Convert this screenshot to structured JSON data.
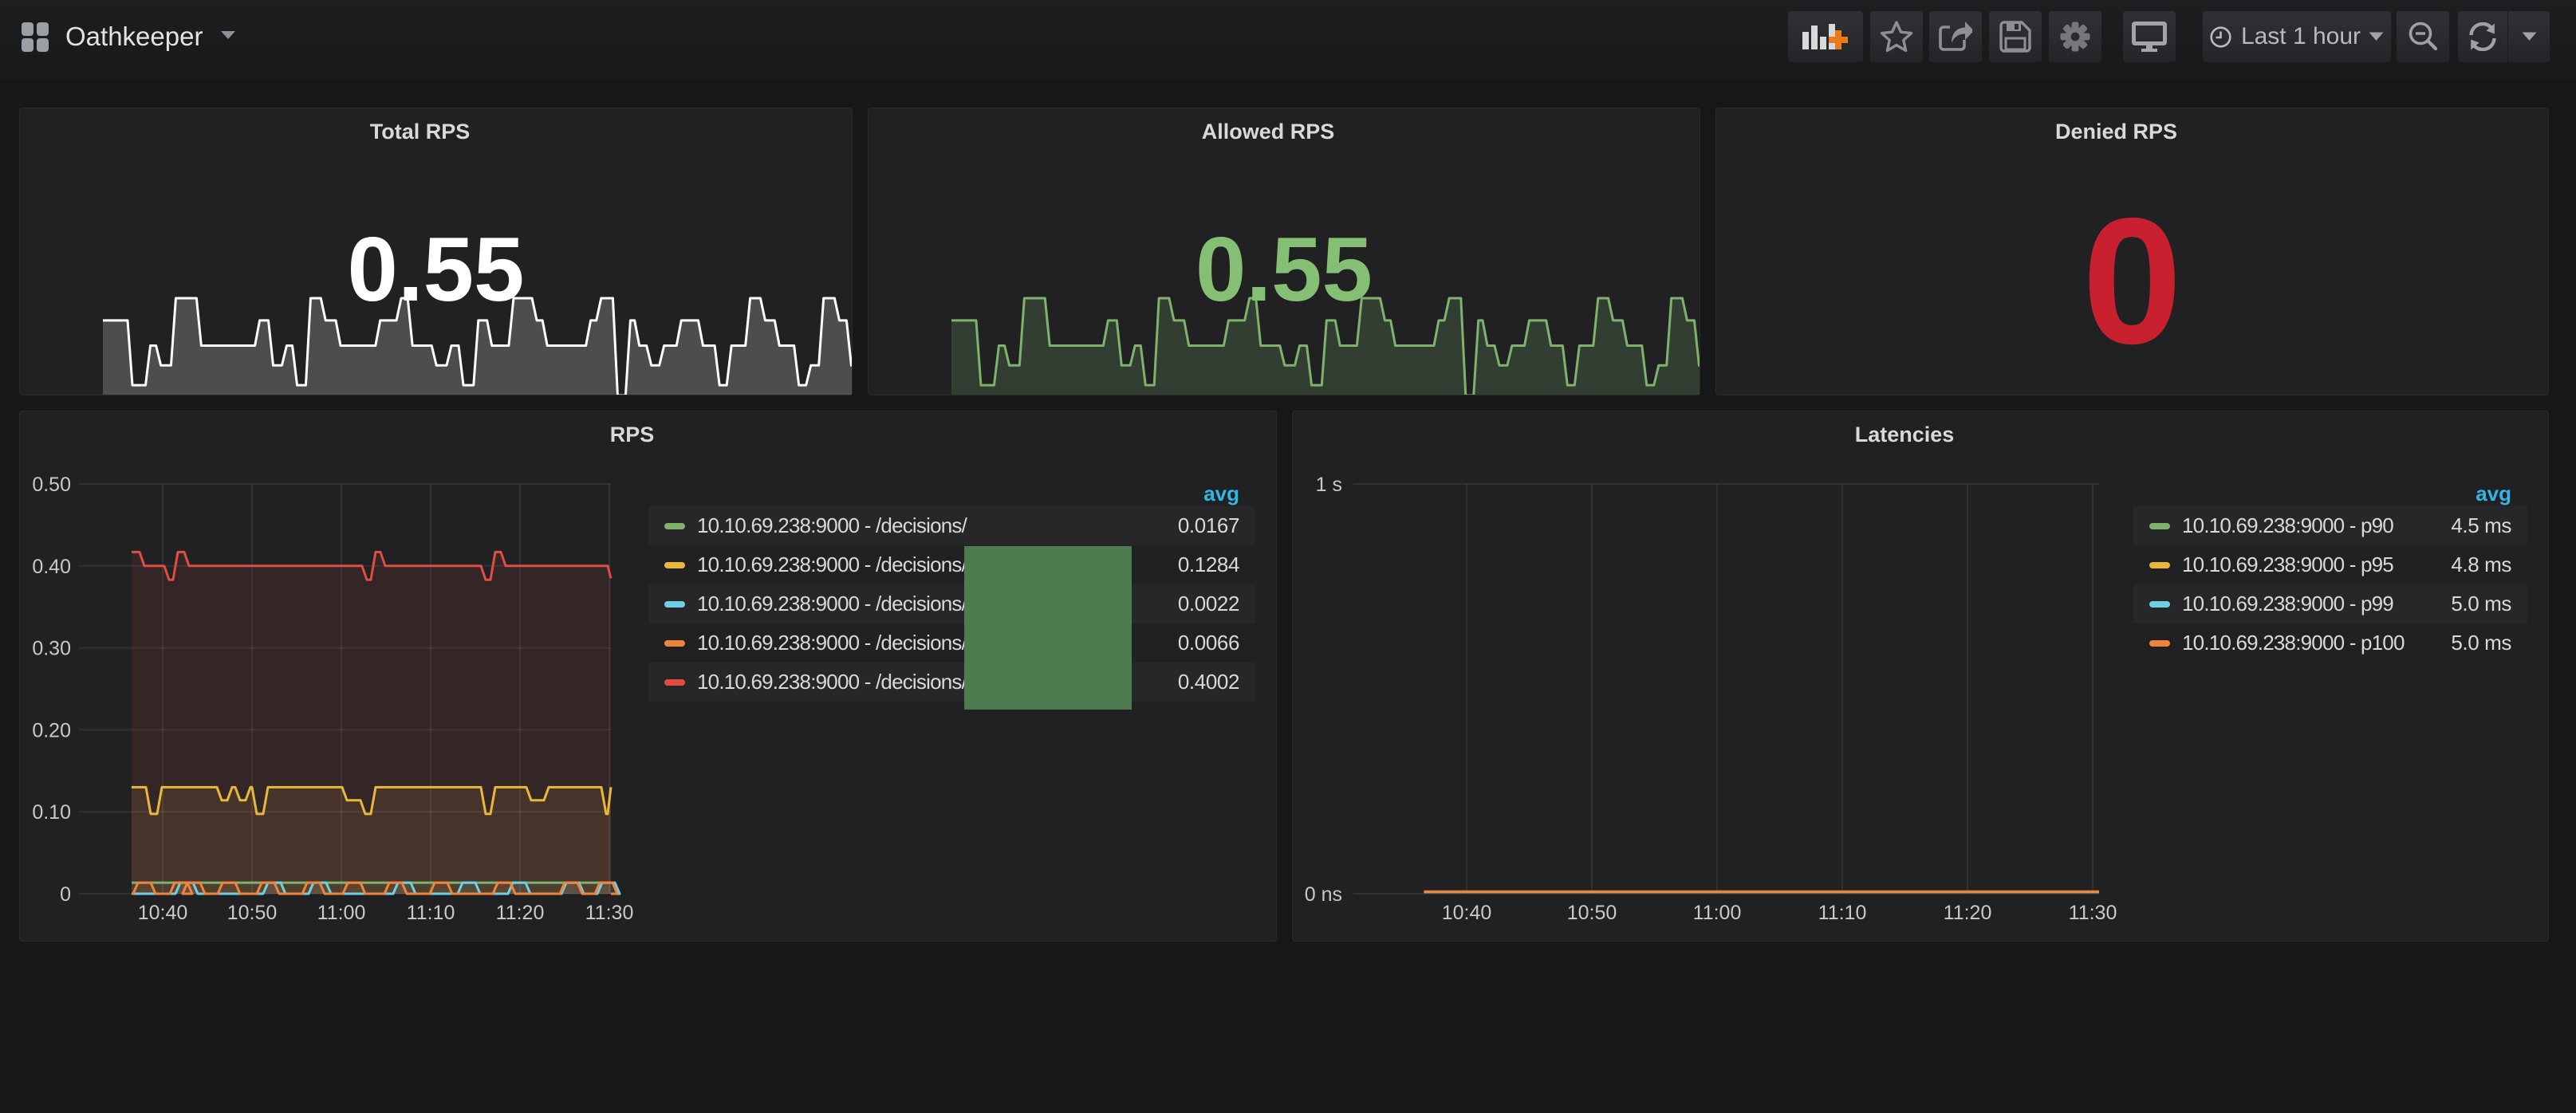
{
  "navbar": {
    "dashboard_title": "Oathkeeper",
    "buttons": {
      "add_panel": "add-panel",
      "star": "star",
      "share": "share",
      "save": "save",
      "settings": "settings",
      "cycle_view": "cycle-view",
      "time_range_label": "Last 1 hour",
      "zoom_out": "zoom-out",
      "refresh": "refresh"
    }
  },
  "redaction": {
    "color": "#4e7b50"
  },
  "colors": {
    "page_bg": "#161719",
    "panel_bg": "#212124",
    "title_text": "#d8d9da",
    "legend_header_blue": "#33b5e5",
    "axis_text": "#c8c9ca",
    "series_green": "#7eb26d",
    "series_yellow": "#eab839",
    "series_blue": "#6ed0e0",
    "series_orange": "#ef843c",
    "series_red": "#e24d42",
    "stat_red": "#c8202f",
    "stat_green": "#85bf73"
  },
  "chart_data": [
    {
      "id": "total_rps",
      "type": "area-singlestat",
      "title": "Total RPS",
      "big_value": "0.55",
      "value_color": "#ffffff",
      "line_color": "#ffffff",
      "fill_color": "rgba(255,255,255,0.20)",
      "note": "sparkline of total requests/s over last hour; y relative 0..1",
      "points": [
        [
          0.0,
          0.772
        ],
        [
          0.033,
          0.106
        ],
        [
          0.057,
          0.512
        ],
        [
          0.071,
          0.309
        ],
        [
          0.091,
          1.0
        ],
        [
          0.125,
          0.512
        ],
        [
          0.203,
          0.772
        ],
        [
          0.221,
          0.309
        ],
        [
          0.239,
          0.512
        ],
        [
          0.253,
          0.106
        ],
        [
          0.271,
          1.0
        ],
        [
          0.291,
          0.772
        ],
        [
          0.311,
          0.512
        ],
        [
          0.364,
          0.772
        ],
        [
          0.392,
          1.0
        ],
        [
          0.407,
          0.512
        ],
        [
          0.439,
          0.309
        ],
        [
          0.459,
          0.512
        ],
        [
          0.475,
          0.106
        ],
        [
          0.495,
          0.772
        ],
        [
          0.513,
          0.512
        ],
        [
          0.542,
          1.0
        ],
        [
          0.573,
          0.772
        ],
        [
          0.587,
          0.512
        ],
        [
          0.645,
          0.772
        ],
        [
          0.659,
          1.0
        ],
        [
          0.681,
          0.0
        ],
        [
          0.698,
          0.772
        ],
        [
          0.71,
          0.512
        ],
        [
          0.726,
          0.309
        ],
        [
          0.743,
          0.512
        ],
        [
          0.766,
          0.772
        ],
        [
          0.795,
          0.512
        ],
        [
          0.817,
          0.106
        ],
        [
          0.833,
          0.512
        ],
        [
          0.858,
          1.0
        ],
        [
          0.878,
          0.772
        ],
        [
          0.897,
          0.512
        ],
        [
          0.923,
          0.106
        ],
        [
          0.939,
          0.309
        ],
        [
          0.956,
          1.0
        ],
        [
          0.977,
          0.772
        ],
        [
          0.993,
          0.309
        ]
      ]
    },
    {
      "id": "allowed_rps",
      "type": "area-singlestat",
      "title": "Allowed RPS",
      "big_value": "0.55",
      "value_color": "#85bf73",
      "line_color": "#7eb26d",
      "fill_color": "rgba(126,178,109,0.20)",
      "note": "same shape as total_rps sparkline",
      "points": [
        [
          0.0,
          0.772
        ],
        [
          0.033,
          0.106
        ],
        [
          0.057,
          0.512
        ],
        [
          0.071,
          0.309
        ],
        [
          0.091,
          1.0
        ],
        [
          0.125,
          0.512
        ],
        [
          0.203,
          0.772
        ],
        [
          0.221,
          0.309
        ],
        [
          0.239,
          0.512
        ],
        [
          0.253,
          0.106
        ],
        [
          0.271,
          1.0
        ],
        [
          0.291,
          0.772
        ],
        [
          0.311,
          0.512
        ],
        [
          0.364,
          0.772
        ],
        [
          0.392,
          1.0
        ],
        [
          0.407,
          0.512
        ],
        [
          0.439,
          0.309
        ],
        [
          0.459,
          0.512
        ],
        [
          0.475,
          0.106
        ],
        [
          0.495,
          0.772
        ],
        [
          0.513,
          0.512
        ],
        [
          0.542,
          1.0
        ],
        [
          0.573,
          0.772
        ],
        [
          0.587,
          0.512
        ],
        [
          0.645,
          0.772
        ],
        [
          0.659,
          1.0
        ],
        [
          0.681,
          0.0
        ],
        [
          0.698,
          0.772
        ],
        [
          0.71,
          0.512
        ],
        [
          0.726,
          0.309
        ],
        [
          0.743,
          0.512
        ],
        [
          0.766,
          0.772
        ],
        [
          0.795,
          0.512
        ],
        [
          0.817,
          0.106
        ],
        [
          0.833,
          0.512
        ],
        [
          0.858,
          1.0
        ],
        [
          0.878,
          0.772
        ],
        [
          0.897,
          0.512
        ],
        [
          0.923,
          0.106
        ],
        [
          0.939,
          0.309
        ],
        [
          0.956,
          1.0
        ],
        [
          0.977,
          0.772
        ],
        [
          0.993,
          0.309
        ]
      ]
    },
    {
      "id": "denied_rps",
      "type": "singlestat",
      "title": "Denied RPS",
      "big_value": "0",
      "value_color": "#c8202f"
    },
    {
      "id": "rps",
      "type": "line",
      "title": "RPS",
      "ylabel": "",
      "ylim": [
        0,
        0.5
      ],
      "y_ticks": [
        {
          "label": "0.50",
          "v": 0.5
        },
        {
          "label": "0.40",
          "v": 0.4
        },
        {
          "label": "0.30",
          "v": 0.3
        },
        {
          "label": "0.20",
          "v": 0.2
        },
        {
          "label": "0.10",
          "v": 0.1
        },
        {
          "label": "0",
          "v": 0.0
        }
      ],
      "x_ticks": [
        "10:40",
        "10:50",
        "11:00",
        "11:10",
        "11:20",
        "11:30"
      ],
      "legend_header": "avg",
      "series": [
        {
          "name": "10.10.69.238:9000 - /decisions/",
          "color": "#7eb26d",
          "avg": "0.0167",
          "points": [
            [
              0.0989,
              0.0135
            ]
          ]
        },
        {
          "name": "10.10.69.238:9000 - /decisions/",
          "color": "#eab839",
          "avg": "0.1284",
          "points": [
            [
              0.0989,
              0.13
            ],
            [
              0.1259,
              0.0974
            ],
            [
              0.1469,
              0.13
            ],
            [
              0.2594,
              0.114
            ],
            [
              0.2789,
              0.13
            ],
            [
              0.2938,
              0.114
            ],
            [
              0.3133,
              0.13
            ],
            [
              0.3253,
              0.0974
            ],
            [
              0.3463,
              0.13
            ],
            [
              0.4948,
              0.114
            ],
            [
              0.5292,
              0.0974
            ],
            [
              0.5487,
              0.13
            ],
            [
              0.7556,
              0.0974
            ],
            [
              0.7736,
              0.13
            ],
            [
              0.8411,
              0.114
            ],
            [
              0.8741,
              0.13
            ],
            [
              0.982,
              0.0974
            ],
            [
              0.994,
              0.13
            ]
          ]
        },
        {
          "name": "10.10.69.238:9000 - /decisions/",
          "color": "#6ed0e0",
          "avg": "0.0022",
          "points": [
            [
              0.0989,
              0.0
            ]
          ],
          "pulses": [
            0.2024,
            0.3673,
            0.4528,
            0.6117,
            0.7331,
            0.8276,
            0.9281,
            0.9955
          ],
          "pulse_height": 0.0135
        },
        {
          "name": "10.10.69.238:9000 - /decisions/",
          "color": "#ef843c",
          "avg": "0.0066",
          "points": [
            [
              0.0989,
              0.0
            ]
          ],
          "pulses": [
            0.1229,
            0.1919,
            0.2159,
            0.2819,
            0.3553,
            0.4408,
            0.5172,
            0.5952,
            0.6806,
            0.7991,
            0.9251,
            0.991
          ],
          "pulse_height": 0.0135
        },
        {
          "name": "10.10.69.238:9000 - /decisions/",
          "color": "#e24d42",
          "avg": "0.4002",
          "points": [
            [
              0.0989,
              0.417
            ],
            [
              0.1139,
              0.4
            ],
            [
              0.1604,
              0.383
            ],
            [
              0.1769,
              0.417
            ],
            [
              0.1979,
              0.4
            ],
            [
              0.5322,
              0.383
            ],
            [
              0.5487,
              0.417
            ],
            [
              0.5667,
              0.4
            ],
            [
              0.7556,
              0.383
            ],
            [
              0.7736,
              0.417
            ],
            [
              0.7931,
              0.4
            ],
            [
              0.994,
              0.385
            ]
          ]
        }
      ]
    },
    {
      "id": "latencies",
      "type": "line",
      "title": "Latencies",
      "ylim_label": [
        "0 ns",
        "1 s"
      ],
      "y_ticks": [
        {
          "label": "1 s",
          "v": 1.0
        },
        {
          "label": "0 ns",
          "v": 0.0
        }
      ],
      "x_ticks": [
        "10:40",
        "10:50",
        "11:00",
        "11:10",
        "11:20",
        "11:30"
      ],
      "legend_header": "avg",
      "series": [
        {
          "name": "10.10.69.238:9000 - p90",
          "color": "#7eb26d",
          "avg": "4.5 ms",
          "points": [
            [
              0.0946,
              0.0045
            ]
          ]
        },
        {
          "name": "10.10.69.238:9000 - p95",
          "color": "#eab839",
          "avg": "4.8 ms",
          "points": [
            [
              0.0946,
              0.0048
            ]
          ]
        },
        {
          "name": "10.10.69.238:9000 - p99",
          "color": "#6ed0e0",
          "avg": "5.0 ms",
          "points": [
            [
              0.0946,
              0.005
            ]
          ]
        },
        {
          "name": "10.10.69.238:9000 - p100",
          "color": "#ef843c",
          "avg": "5.0 ms",
          "points": [
            [
              0.0946,
              0.005
            ]
          ]
        }
      ]
    }
  ]
}
